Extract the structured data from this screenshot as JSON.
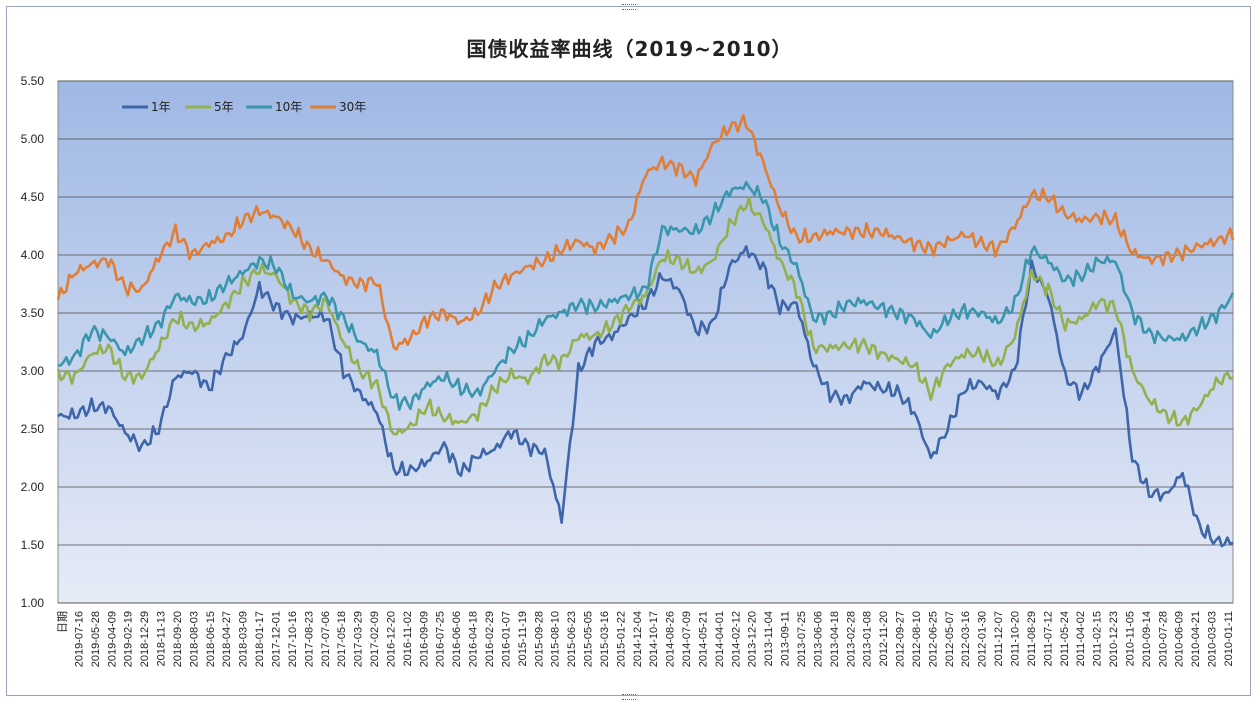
{
  "chart_data": {
    "type": "line",
    "title": "国债收益率曲线（2019~2010）",
    "xlabel": "",
    "ylabel": "",
    "first_category": "日期",
    "ylim": [
      1.0,
      5.5
    ],
    "yticks": [
      "1.00",
      "1.50",
      "2.00",
      "2.50",
      "3.00",
      "3.50",
      "4.00",
      "4.50",
      "5.00",
      "5.50"
    ],
    "grid": true,
    "legend_position": "top-left",
    "background_gradient": [
      "#9fb8e4",
      "#e6ebf7"
    ],
    "x_dates": [
      "2019-07-16",
      "2019-05-28",
      "2019-04-09",
      "2019-02-19",
      "2018-12-29",
      "2018-11-13",
      "2018-09-20",
      "2018-08-03",
      "2018-06-15",
      "2018-04-27",
      "2018-03-09",
      "2018-01-17",
      "2017-12-01",
      "2017-10-16",
      "2017-08-23",
      "2017-07-06",
      "2017-05-18",
      "2017-03-29",
      "2017-02-09",
      "2016-12-20",
      "2016-11-02",
      "2016-09-09",
      "2016-07-25",
      "2016-06-06",
      "2016-04-18",
      "2016-02-29",
      "2016-01-07",
      "2015-11-19",
      "2015-09-28",
      "2015-08-10",
      "2015-06-23",
      "2015-05-05",
      "2015-03-16",
      "2015-01-22",
      "2014-12-04",
      "2014-10-17",
      "2014-08-26",
      "2014-07-09",
      "2014-05-21",
      "2014-04-01",
      "2014-02-12",
      "2013-12-20",
      "2013-11-04",
      "2013-09-11",
      "2013-07-25",
      "2013-06-06",
      "2013-04-18",
      "2013-02-28",
      "2013-01-08",
      "2012-11-20",
      "2012-09-27",
      "2012-08-10",
      "2012-06-25",
      "2012-05-07",
      "2012-03-16",
      "2012-01-30",
      "2011-12-07",
      "2011-10-20",
      "2011-08-29",
      "2011-07-12",
      "2011-05-24",
      "2011-04-02",
      "2011-02-15",
      "2010-12-23",
      "2010-11-05",
      "2010-09-14",
      "2010-07-28",
      "2010-06-09",
      "2010-04-21",
      "2010-03-03",
      "2010-01-11"
    ],
    "series": [
      {
        "name": "1年",
        "color": "#3e66a8",
        "values": [
          2.61,
          2.62,
          2.69,
          2.69,
          2.47,
          2.34,
          2.5,
          2.95,
          3.0,
          2.85,
          3.12,
          3.3,
          3.72,
          3.55,
          3.45,
          3.48,
          3.47,
          3.0,
          2.8,
          2.65,
          2.15,
          2.14,
          2.22,
          2.36,
          2.12,
          2.27,
          2.32,
          2.48,
          2.35,
          2.3,
          1.72,
          3.0,
          3.24,
          3.3,
          3.45,
          3.58,
          3.82,
          3.7,
          3.35,
          3.4,
          3.9,
          4.05,
          3.9,
          3.55,
          3.58,
          3.05,
          2.8,
          2.75,
          2.9,
          2.85,
          2.82,
          2.65,
          2.25,
          2.5,
          2.85,
          2.9,
          2.8,
          3.0,
          3.9,
          3.65,
          2.95,
          2.8,
          3.05,
          3.35,
          2.25,
          1.95,
          1.93,
          2.12,
          1.65,
          1.53,
          1.52
        ]
      },
      {
        "name": "5年",
        "color": "#93b04f",
        "values": [
          2.97,
          2.95,
          3.15,
          3.2,
          2.95,
          2.95,
          3.2,
          3.46,
          3.38,
          3.42,
          3.57,
          3.75,
          3.88,
          3.82,
          3.6,
          3.5,
          3.6,
          3.25,
          3.0,
          2.88,
          2.45,
          2.52,
          2.7,
          2.6,
          2.55,
          2.63,
          2.85,
          2.97,
          2.92,
          3.1,
          3.08,
          3.3,
          3.3,
          3.4,
          3.55,
          3.65,
          3.98,
          3.95,
          3.85,
          3.95,
          4.25,
          4.45,
          4.3,
          3.95,
          3.7,
          3.2,
          3.2,
          3.22,
          3.23,
          3.15,
          3.1,
          3.05,
          2.8,
          3.05,
          3.15,
          3.15,
          3.05,
          3.3,
          3.85,
          3.7,
          3.4,
          3.45,
          3.6,
          3.55,
          3.0,
          2.75,
          2.62,
          2.55,
          2.7,
          2.9,
          2.98
        ]
      },
      {
        "name": "10年",
        "color": "#3a96ad",
        "values": [
          3.05,
          3.12,
          3.35,
          3.3,
          3.15,
          3.28,
          3.4,
          3.65,
          3.6,
          3.62,
          3.75,
          3.85,
          3.95,
          3.9,
          3.65,
          3.6,
          3.65,
          3.45,
          3.25,
          3.15,
          2.75,
          2.72,
          2.88,
          2.95,
          2.85,
          2.8,
          3.0,
          3.18,
          3.28,
          3.45,
          3.5,
          3.58,
          3.55,
          3.6,
          3.65,
          3.7,
          4.22,
          4.22,
          4.2,
          4.35,
          4.55,
          4.6,
          4.5,
          4.12,
          3.9,
          3.45,
          3.48,
          3.58,
          3.6,
          3.55,
          3.5,
          3.45,
          3.3,
          3.45,
          3.52,
          3.5,
          3.42,
          3.58,
          4.05,
          3.95,
          3.78,
          3.82,
          3.95,
          3.95,
          3.5,
          3.32,
          3.28,
          3.28,
          3.38,
          3.48,
          3.65
        ]
      },
      {
        "name": "30年",
        "color": "#e07e35",
        "values": [
          3.62,
          3.85,
          3.92,
          3.96,
          3.72,
          3.7,
          3.98,
          4.2,
          4.0,
          4.1,
          4.15,
          4.3,
          4.38,
          4.33,
          4.22,
          4.05,
          3.95,
          3.8,
          3.75,
          3.78,
          3.2,
          3.28,
          3.45,
          3.5,
          3.42,
          3.5,
          3.72,
          3.82,
          3.9,
          3.95,
          4.05,
          4.12,
          4.05,
          4.15,
          4.25,
          4.7,
          4.8,
          4.75,
          4.65,
          4.95,
          5.1,
          5.15,
          4.8,
          4.4,
          4.15,
          4.15,
          4.2,
          4.2,
          4.2,
          4.2,
          4.15,
          4.1,
          4.05,
          4.12,
          4.18,
          4.1,
          4.05,
          4.25,
          4.52,
          4.5,
          4.35,
          4.3,
          4.33,
          4.3,
          4.02,
          3.96,
          3.98,
          4.02,
          4.08,
          4.12,
          4.18
        ]
      }
    ]
  }
}
